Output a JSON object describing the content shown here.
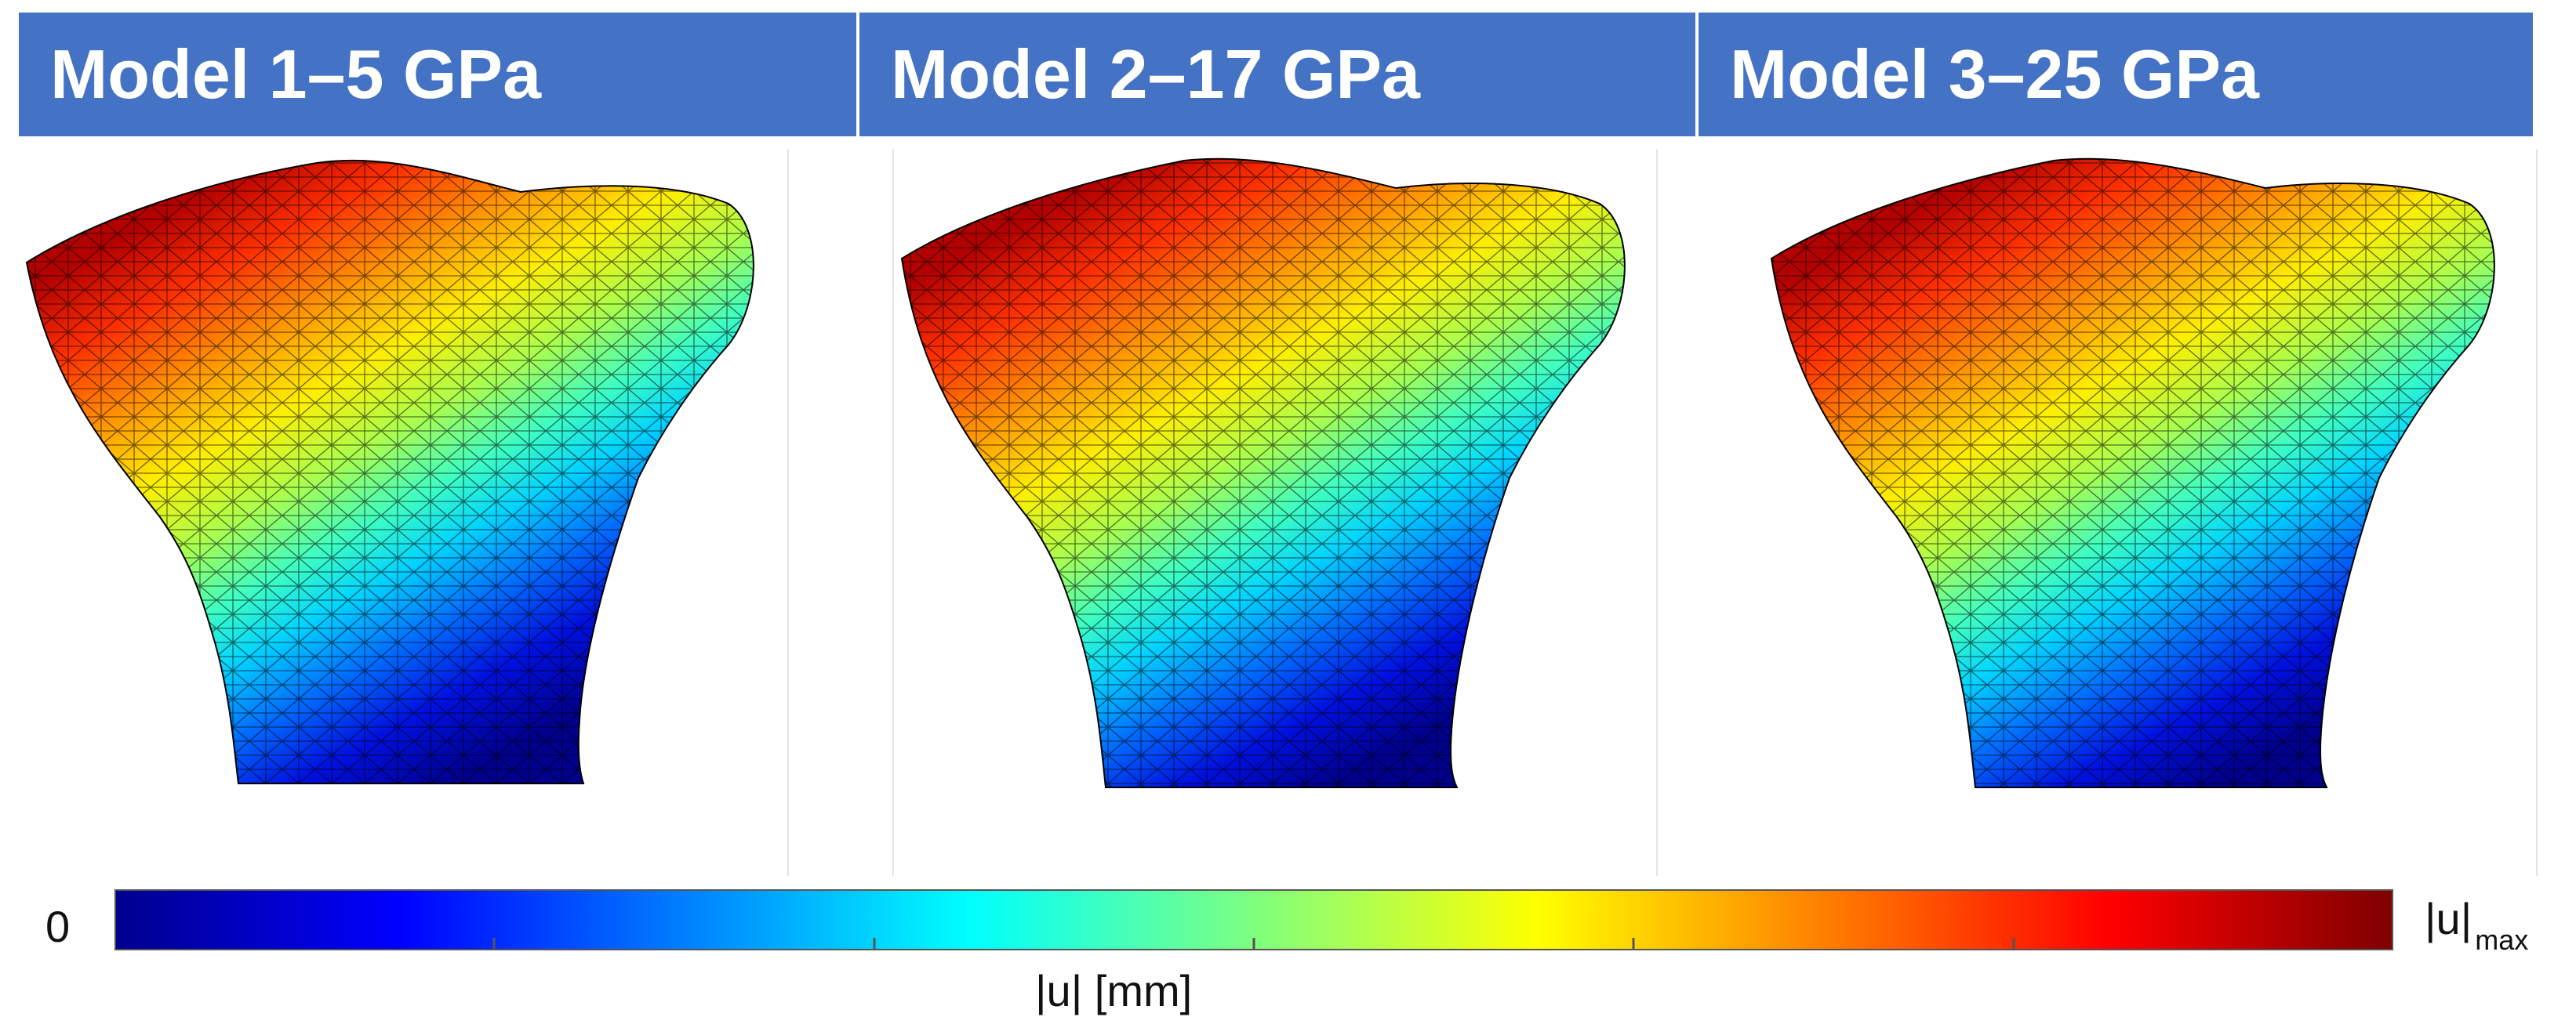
{
  "models": [
    {
      "title": "Model 1–5 GPa"
    },
    {
      "title": "Model 2–17 GPa"
    },
    {
      "title": "Model 3–25 GPa"
    }
  ],
  "colorbar": {
    "min_label": "0",
    "max_label": "|u|",
    "max_subscript": "max",
    "unit_label": "|u|  [mm]",
    "colormap": "jet",
    "tick_count": 5
  },
  "colors": {
    "banner": "#4472c4",
    "banner_text": "#ffffff",
    "mesh_line": "#000000"
  }
}
